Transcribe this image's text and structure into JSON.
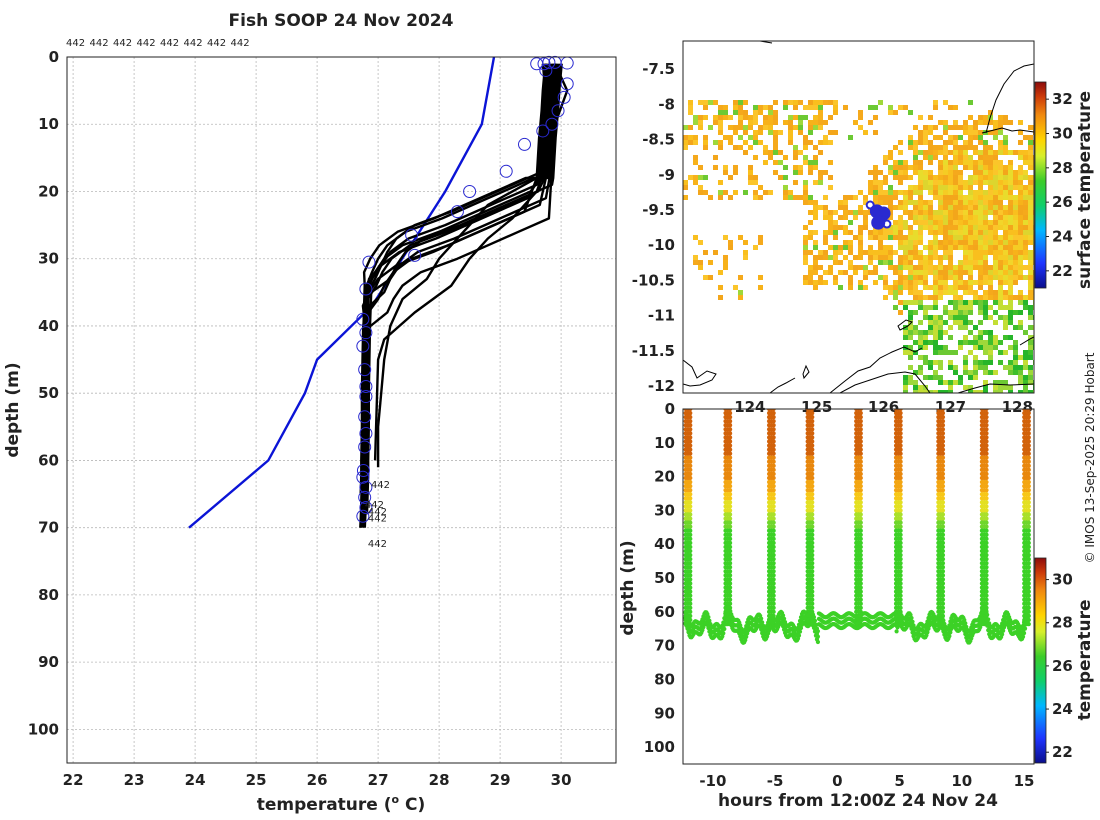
{
  "title": "Fish SOOP 24 Nov 2024",
  "credit": "© IMOS 13-Sep-2025 20:29 Hobart",
  "colors": {
    "profile": "#000000",
    "climatology": "#0b14d6",
    "marker": "#2a2ad0",
    "coast": "#000000"
  },
  "chart_data": [
    {
      "id": "profiles",
      "type": "line",
      "title": "Fish SOOP 24 Nov 2024",
      "xlabel": "temperature (° C)",
      "xlabel_main": "temperature (",
      "xlabel_sup": "o",
      "xlabel_end": " C)",
      "ylabel": "depth (m)",
      "xlim": [
        21.9,
        30.9
      ],
      "ylim": [
        105,
        0
      ],
      "grid": true,
      "xticks": [
        22,
        23,
        24,
        25,
        26,
        27,
        28,
        29,
        30
      ],
      "yticks": [
        0,
        10,
        20,
        30,
        40,
        50,
        60,
        70,
        80,
        90,
        100
      ],
      "top_labels": [
        "442",
        "442",
        "442",
        "442",
        "442",
        "442",
        "442",
        "442"
      ],
      "depth_labels": [
        {
          "text": "442",
          "t": 26.85,
          "d": 63.5
        },
        {
          "text": "442",
          "t": 26.75,
          "d": 66.5
        },
        {
          "text": "442",
          "t": 26.8,
          "d": 67.5
        },
        {
          "text": "442",
          "t": 26.8,
          "d": 68.5
        },
        {
          "text": "442",
          "t": 26.8,
          "d": 72.3
        }
      ],
      "climatology": {
        "name": "climatology",
        "temperature": [
          28.9,
          28.7,
          28.1,
          26.9,
          26.0,
          25.8,
          25.2,
          23.9
        ],
        "depth": [
          0,
          10,
          20,
          37,
          45,
          50,
          60,
          70
        ]
      },
      "profile_template": {
        "depth": [
          1,
          3,
          5,
          8,
          10,
          12,
          15,
          18,
          20,
          22,
          24,
          26,
          28,
          30,
          32,
          34,
          36,
          40,
          45,
          50,
          55,
          60,
          62,
          65,
          68,
          70
        ],
        "temperature": [
          29.8,
          29.78,
          29.76,
          29.74,
          29.72,
          29.7,
          29.68,
          29.66,
          29.5,
          29.0,
          28.5,
          28.0,
          27.4,
          27.1,
          26.95,
          26.85,
          26.8,
          26.78,
          26.77,
          26.76,
          26.76,
          26.75,
          26.75,
          26.74,
          26.73,
          26.72
        ]
      },
      "profile_offsets": [
        {
          "dd": 0,
          "dt": 0.0,
          "end": 70
        },
        {
          "dd": -2,
          "dt": 0.05,
          "end": 68
        },
        {
          "dd": -1,
          "dt": 0.1,
          "end": 69
        },
        {
          "dd": 1,
          "dt": -0.05,
          "end": 71
        },
        {
          "dd": 2,
          "dt": 0.15,
          "end": 64
        },
        {
          "dd": -3,
          "dt": 0.2,
          "end": 66
        },
        {
          "dd": 3,
          "dt": -0.1,
          "end": 67
        },
        {
          "dd": 4,
          "dt": 0.3,
          "end": 68
        },
        {
          "dd": -2,
          "dt": -0.08,
          "end": 65
        },
        {
          "dd": 1,
          "dt": 0.25,
          "end": 70
        },
        {
          "dd": -1,
          "dt": 0.35,
          "end": 69
        },
        {
          "dd": 0,
          "dt": 0.12,
          "end": 72
        }
      ],
      "outlier_profiles": [
        {
          "temperature": [
            29.7,
            29.8,
            29.6,
            28.8,
            28.4,
            28.0,
            27.8,
            27.4,
            27.2,
            27.1,
            27.05,
            27.0,
            27.0,
            27.0
          ],
          "depth": [
            1,
            10,
            18,
            22,
            26,
            30,
            33,
            36,
            40,
            45,
            50,
            55,
            58,
            61
          ]
        },
        {
          "temperature": [
            29.9,
            30.1,
            29.9,
            29.8,
            29.6,
            29.2,
            28.8,
            28.5,
            28.2,
            27.6,
            27.1,
            27.0,
            26.95
          ],
          "depth": [
            1,
            5,
            10,
            15,
            20,
            24,
            27,
            30,
            34,
            38,
            42,
            45,
            60
          ]
        }
      ],
      "circles": [
        {
          "t": 29.72,
          "d": 1
        },
        {
          "t": 29.8,
          "d": 0.8
        },
        {
          "t": 29.9,
          "d": 0.8
        },
        {
          "t": 29.6,
          "d": 1
        },
        {
          "t": 30.1,
          "d": 0.9
        },
        {
          "t": 29.75,
          "d": 2
        },
        {
          "t": 30.1,
          "d": 4
        },
        {
          "t": 30.05,
          "d": 6
        },
        {
          "t": 29.95,
          "d": 8
        },
        {
          "t": 29.85,
          "d": 10
        },
        {
          "t": 29.7,
          "d": 11
        },
        {
          "t": 29.4,
          "d": 13
        },
        {
          "t": 29.1,
          "d": 17
        },
        {
          "t": 28.5,
          "d": 20
        },
        {
          "t": 28.3,
          "d": 23
        },
        {
          "t": 27.55,
          "d": 26.5
        },
        {
          "t": 27.6,
          "d": 29.5
        },
        {
          "t": 26.85,
          "d": 30.5
        },
        {
          "t": 26.8,
          "d": 34.5
        },
        {
          "t": 26.75,
          "d": 39
        },
        {
          "t": 26.8,
          "d": 41
        },
        {
          "t": 26.75,
          "d": 43
        },
        {
          "t": 26.78,
          "d": 46.5
        },
        {
          "t": 26.8,
          "d": 49
        },
        {
          "t": 26.8,
          "d": 50.5
        },
        {
          "t": 26.78,
          "d": 53.5
        },
        {
          "t": 26.8,
          "d": 56
        },
        {
          "t": 26.78,
          "d": 58
        },
        {
          "t": 26.76,
          "d": 61.5
        },
        {
          "t": 26.75,
          "d": 62.5
        },
        {
          "t": 26.8,
          "d": 64
        },
        {
          "t": 26.78,
          "d": 65.5
        },
        {
          "t": 26.8,
          "d": 67
        },
        {
          "t": 26.75,
          "d": 68.3
        }
      ]
    },
    {
      "id": "map",
      "type": "heatmap",
      "xlim": [
        123.0,
        128.25
      ],
      "ylim": [
        -12.1,
        -7.1
      ],
      "xticks": [
        124,
        125,
        126,
        127,
        128
      ],
      "yticks": [
        -7.5,
        -8,
        -8.5,
        -9,
        -9.5,
        -10,
        -10.5,
        -11,
        -11.5,
        -12
      ],
      "yticklabels": [
        "-7.5",
        "-8",
        "-8.5",
        "-9",
        "-9.5",
        "-10",
        "-10.5",
        "-11",
        "-11.5",
        "-12"
      ],
      "colorbar": {
        "label": "surface temperature",
        "ticks": [
          22,
          24,
          26,
          28,
          30,
          32
        ],
        "range": [
          21,
          33
        ]
      },
      "track": {
        "lon": [
          125.8,
          125.9,
          126.0,
          125.95,
          126.05,
          125.92
        ],
        "lat": [
          -9.43,
          -9.52,
          -9.55,
          -9.65,
          -9.7,
          -9.68
        ]
      }
    },
    {
      "id": "curtain",
      "type": "scatter",
      "xlabel": "hours from 12:00Z 24 Nov 24",
      "ylabel": "depth (m)",
      "xlim": [
        -12.4,
        15.8
      ],
      "ylim": [
        105,
        0
      ],
      "xticks": [
        -10,
        -5,
        0,
        5,
        10,
        15
      ],
      "yticks": [
        0,
        10,
        20,
        30,
        40,
        50,
        60,
        70,
        80,
        90,
        100
      ],
      "colorbar": {
        "label": "temperature",
        "ticks": [
          22,
          24,
          26,
          28,
          30
        ],
        "range": [
          21.5,
          31
        ]
      },
      "casts": [
        -12,
        -8.8,
        -5.3,
        -2.2,
        1.7,
        4.9,
        8.3,
        11.8,
        15.2
      ],
      "bottom_depth_m": 63,
      "surface_temp": 30.0,
      "deep_temp": 26.7
    }
  ]
}
